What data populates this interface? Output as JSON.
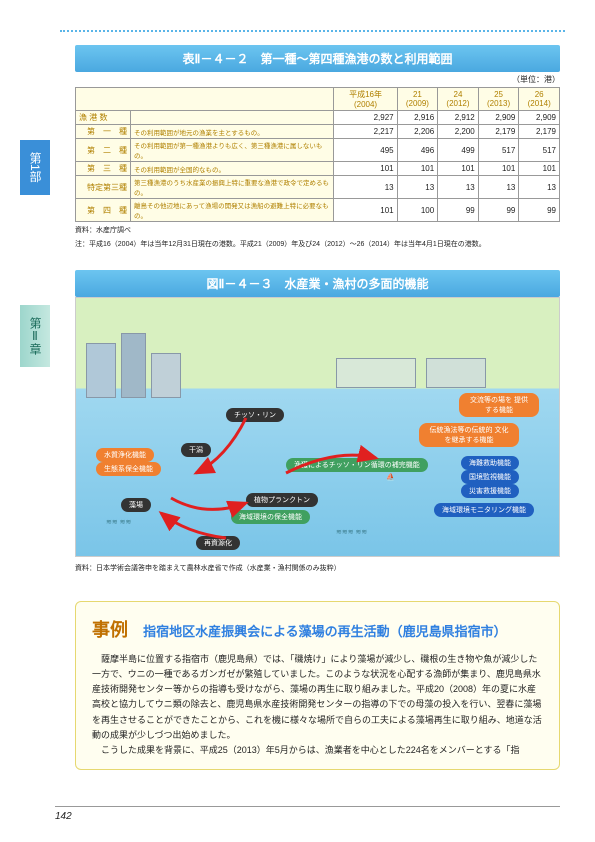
{
  "tabs": {
    "tab1": "第1部",
    "tab2": "第Ⅱ章"
  },
  "table": {
    "title": "表Ⅱ－４－２　第一種～第四種漁港の数と利用範囲",
    "unit": "（単位：港）",
    "headers": [
      "",
      "",
      "平成16年\n(2004)",
      "21\n(2009)",
      "24\n(2012)",
      "25\n(2013)",
      "26\n(2014)"
    ],
    "rows": [
      {
        "label": "漁 港 数",
        "desc": "",
        "v": [
          "2,927",
          "2,916",
          "2,912",
          "2,909",
          "2,909"
        ]
      },
      {
        "label": "　第　一　種",
        "desc": "その利用範囲が地元の漁業を主とするもの。",
        "v": [
          "2,217",
          "2,206",
          "2,200",
          "2,179",
          "2,179"
        ]
      },
      {
        "label": "　第　二　種",
        "desc": "その利用範囲が第一種漁港よりも広く、第三種漁港に属しないもの。",
        "v": [
          "495",
          "496",
          "499",
          "517",
          "517"
        ]
      },
      {
        "label": "　第　三　種",
        "desc": "その利用範囲が全国的なもの。",
        "v": [
          "101",
          "101",
          "101",
          "101",
          "101"
        ]
      },
      {
        "label": "　特定第三種",
        "desc": "第三種漁港のうち水産業の振興上特に重要な漁港で政令で定めるもの。",
        "v": [
          "13",
          "13",
          "13",
          "13",
          "13"
        ]
      },
      {
        "label": "　第　四　種",
        "desc": "離島その他辺地にあって漁場の開発又は漁船の避難上特に必要なもの。",
        "v": [
          "101",
          "100",
          "99",
          "99",
          "99"
        ]
      }
    ],
    "note1": "資料：水産庁調べ",
    "note2": "注：平成16（2004）年は当年12月31日現在の港数。平成21（2009）年及び24（2012）～26（2014）年は当年4月1日現在の港数。"
  },
  "figure": {
    "title": "図Ⅱ－４－３　水産業・漁村の多面的機能",
    "labels": {
      "chisso": "チッソ・リン",
      "higata": "干潟",
      "suishitsu": "水質浄化機能",
      "seitai": "生態系保全機能",
      "moba": "藻場",
      "plankton": "植物プランクトン",
      "kaiiki_hozen": "海域環境の保全機能",
      "saishigen": "再資源化",
      "gyokaku": "漁獲によるチッソ・リン循環の補完機能",
      "koryu": "交流等の場を\n提供する機能",
      "dentou": "伝統漁法等の伝統的\n文化を継承する機能",
      "kainan": "海難救助機能",
      "kokkyou": "国境監視機能",
      "saigai": "災害救援機能",
      "monitoring": "海域環境モニタリング機能"
    },
    "note": "資料：日本学術会議答申を踏まえて農林水産省で作成（水産業・漁村関係のみ抜粋）"
  },
  "case": {
    "jirei": "事例",
    "subtitle": "指宿地区水産振興会による藻場の再生活動（鹿児島県指宿市）",
    "p1": "薩摩半島に位置する指宿市（鹿児島県）では、「磯焼け」により藻場が減少し、磯根の生き物や魚が減少した一方で、ウニの一種であるガンガゼが繁殖していました。このような状況を心配する漁師が集まり、鹿児島県水産技術開発センター等からの指導も受けながら、藻場の再生に取り組みました。平成20（2008）年の夏に水産高校と協力してウニ類の除去と、鹿児島県水産技術開発センターの指導の下での母藻の投入を行い、翌春に藻場を再生させることができたことから、これを機に様々な場所で自らの工夫による藻場再生に取り組み、地道な活動の成果が少しづつ出始めました。",
    "p2": "こうした成果を背景に、平成25（2013）年5月からは、漁業者を中心とした224名をメンバーとする「指"
  },
  "pagenum": "142"
}
